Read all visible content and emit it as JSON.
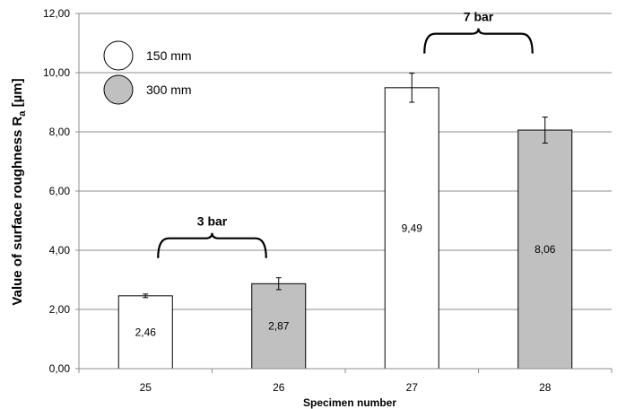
{
  "chart_data": {
    "type": "bar",
    "categories": [
      "25",
      "26",
      "27",
      "28"
    ],
    "values": [
      2.46,
      2.87,
      9.49,
      8.06
    ],
    "value_labels": [
      "2,46",
      "2,87",
      "9,49",
      "8,06"
    ],
    "error_bars": [
      [
        2.4,
        2.52
      ],
      [
        2.67,
        3.07
      ],
      [
        9.0,
        9.98
      ],
      [
        7.62,
        8.5
      ]
    ],
    "bar_series": [
      "150 mm",
      "300 mm",
      "150 mm",
      "300 mm"
    ],
    "series": [
      {
        "name": "150 mm",
        "color": "#ffffff"
      },
      {
        "name": "300 mm",
        "color": "#c0c0c0"
      }
    ],
    "ylim": [
      0,
      12
    ],
    "y_ticks": [
      0,
      2,
      4,
      6,
      8,
      10,
      12
    ],
    "y_tick_labels": [
      "0,00",
      "2,00",
      "4,00",
      "6,00",
      "8,00",
      "10,00",
      "12,00"
    ],
    "xlabel": "Specimen number",
    "ylabel_main": "Value of surface roughness R",
    "ylabel_sub": "a",
    "ylabel_unit": " [µm]",
    "annotations": [
      {
        "text": "3 bar",
        "bars": [
          0,
          1
        ]
      },
      {
        "text": "7 bar",
        "bars": [
          2,
          3
        ]
      }
    ],
    "grid": true,
    "legend": "top-left"
  }
}
